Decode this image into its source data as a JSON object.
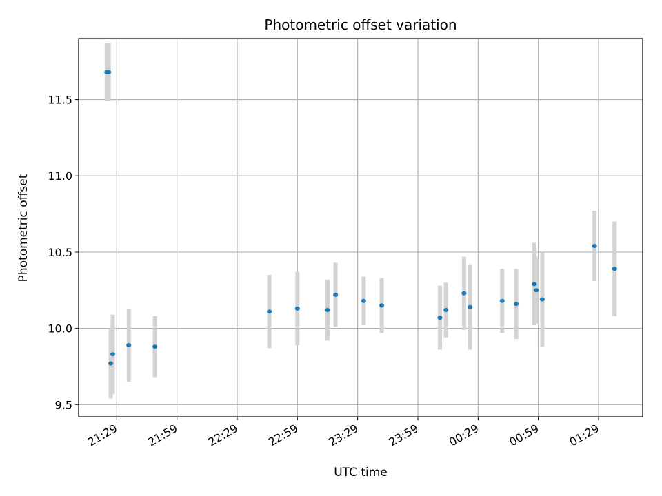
{
  "chart_data": {
    "type": "scatter",
    "title": "Photometric offset variation",
    "xlabel": "UTC time",
    "ylabel": "Photometric offset",
    "x_unit": "UTC time (HH:MM), date rolls past midnight after 23:59",
    "x_ticks": [
      "21:29",
      "21:59",
      "22:29",
      "22:59",
      "23:29",
      "23:59",
      "00:29",
      "00:59",
      "01:29"
    ],
    "xlim": [
      "21:10",
      "01:51"
    ],
    "y_ticks": [
      "9.5",
      "10.0",
      "10.5",
      "11.0",
      "11.5"
    ],
    "ylim": [
      9.42,
      11.9
    ],
    "grid": true,
    "colors": {
      "point": "#1f77b4",
      "errorbar": "#d3d3d3",
      "grid": "#b0b0b0"
    },
    "series": [
      {
        "points": [
          {
            "time": "21:24",
            "y": 11.68,
            "err": 0.19
          },
          {
            "time": "21:25",
            "y": 11.68,
            "err": 0.19
          },
          {
            "time": "21:26",
            "y": 9.77,
            "err": 0.23
          },
          {
            "time": "21:27",
            "y": 9.83,
            "err": 0.26
          },
          {
            "time": "21:35",
            "y": 9.89,
            "err": 0.24
          },
          {
            "time": "21:48",
            "y": 9.88,
            "err": 0.2
          },
          {
            "time": "22:45",
            "y": 10.11,
            "err": 0.24
          },
          {
            "time": "22:59",
            "y": 10.13,
            "err": 0.24
          },
          {
            "time": "23:14",
            "y": 10.12,
            "err": 0.2
          },
          {
            "time": "23:18",
            "y": 10.22,
            "err": 0.21
          },
          {
            "time": "23:32",
            "y": 10.18,
            "err": 0.16
          },
          {
            "time": "23:41",
            "y": 10.15,
            "err": 0.18
          },
          {
            "time": "00:10",
            "y": 10.07,
            "err": 0.21
          },
          {
            "time": "00:13",
            "y": 10.12,
            "err": 0.18
          },
          {
            "time": "00:22",
            "y": 10.23,
            "err": 0.24
          },
          {
            "time": "00:25",
            "y": 10.14,
            "err": 0.28
          },
          {
            "time": "00:41",
            "y": 10.18,
            "err": 0.21
          },
          {
            "time": "00:48",
            "y": 10.16,
            "err": 0.23
          },
          {
            "time": "00:57",
            "y": 10.29,
            "err": 0.27
          },
          {
            "time": "00:58",
            "y": 10.25,
            "err": 0.22
          },
          {
            "time": "01:01",
            "y": 10.19,
            "err": 0.31
          },
          {
            "time": "01:27",
            "y": 10.54,
            "err": 0.23
          },
          {
            "time": "01:37",
            "y": 10.39,
            "err": 0.31
          }
        ]
      }
    ]
  }
}
